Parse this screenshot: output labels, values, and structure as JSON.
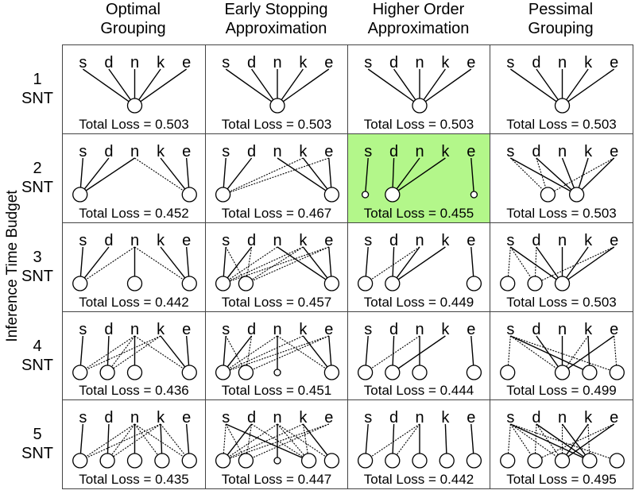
{
  "columns": [
    {
      "line1": "Optimal",
      "line2": "Grouping"
    },
    {
      "line1": "Early Stopping",
      "line2": "Approximation"
    },
    {
      "line1": "Higher Order",
      "line2": "Approximation"
    },
    {
      "line1": "Pessimal",
      "line2": "Grouping"
    }
  ],
  "rows": [
    {
      "num": "1",
      "unit": "SNT"
    },
    {
      "num": "2",
      "unit": "SNT"
    },
    {
      "num": "3",
      "unit": "SNT"
    },
    {
      "num": "4",
      "unit": "SNT"
    },
    {
      "num": "5",
      "unit": "SNT"
    }
  ],
  "y_axis_label": "Inference Time Budget",
  "task_labels": [
    "s",
    "d",
    "n",
    "k",
    "e"
  ],
  "highlight_color": "#b3f78a",
  "highlighted_cell": {
    "row": 1,
    "col": 2
  },
  "loss_prefix": "Total Loss = ",
  "losses": [
    [
      "0.503",
      "0.503",
      "0.503",
      "0.503"
    ],
    [
      "0.452",
      "0.467",
      "0.455",
      "0.503"
    ],
    [
      "0.442",
      "0.457",
      "0.449",
      "0.503"
    ],
    [
      "0.436",
      "0.451",
      "0.444",
      "0.499"
    ],
    [
      "0.435",
      "0.447",
      "0.442",
      "0.495"
    ]
  ],
  "cells": [
    [
      {
        "nodes": [
          {
            "x": 0.5,
            "r": 9
          }
        ],
        "edges": [
          [
            0,
            0,
            1
          ],
          [
            1,
            0,
            1
          ],
          [
            2,
            0,
            1
          ],
          [
            3,
            0,
            1
          ],
          [
            4,
            0,
            1
          ]
        ]
      },
      {
        "nodes": [
          {
            "x": 0.5,
            "r": 9
          }
        ],
        "edges": [
          [
            0,
            0,
            1
          ],
          [
            1,
            0,
            1
          ],
          [
            2,
            0,
            1
          ],
          [
            3,
            0,
            1
          ],
          [
            4,
            0,
            1
          ]
        ]
      },
      {
        "nodes": [
          {
            "x": 0.5,
            "r": 9
          }
        ],
        "edges": [
          [
            0,
            0,
            1
          ],
          [
            1,
            0,
            1
          ],
          [
            2,
            0,
            1
          ],
          [
            3,
            0,
            1
          ],
          [
            4,
            0,
            1
          ]
        ]
      },
      {
        "nodes": [
          {
            "x": 0.5,
            "r": 9
          }
        ],
        "edges": [
          [
            0,
            0,
            1
          ],
          [
            1,
            0,
            1
          ],
          [
            2,
            0,
            1
          ],
          [
            3,
            0,
            1
          ],
          [
            4,
            0,
            1
          ]
        ]
      }
    ],
    [
      {
        "nodes": [
          {
            "x": 0.12,
            "r": 9
          },
          {
            "x": 0.88,
            "r": 9
          }
        ],
        "edges": [
          [
            0,
            0,
            1
          ],
          [
            1,
            0,
            1
          ],
          [
            2,
            0,
            1
          ],
          [
            2,
            1,
            0
          ],
          [
            3,
            1,
            1
          ],
          [
            4,
            1,
            1
          ]
        ]
      },
      {
        "nodes": [
          {
            "x": 0.12,
            "r": 9
          },
          {
            "x": 0.88,
            "r": 9
          }
        ],
        "edges": [
          [
            0,
            0,
            1
          ],
          [
            1,
            0,
            1
          ],
          [
            3,
            0,
            0
          ],
          [
            4,
            0,
            0
          ],
          [
            2,
            1,
            1
          ],
          [
            3,
            1,
            1
          ],
          [
            4,
            1,
            1
          ]
        ]
      },
      {
        "nodes": [
          {
            "x": 0.12,
            "r": 4
          },
          {
            "x": 0.31,
            "r": 9
          },
          {
            "x": 0.88,
            "r": 4
          }
        ],
        "edges": [
          [
            0,
            0,
            1
          ],
          [
            1,
            1,
            1
          ],
          [
            2,
            1,
            1
          ],
          [
            3,
            1,
            1
          ],
          [
            4,
            2,
            1
          ]
        ]
      },
      {
        "nodes": [
          {
            "x": 0.4,
            "r": 9
          },
          {
            "x": 0.6,
            "r": 9
          }
        ],
        "edges": [
          [
            0,
            0,
            0
          ],
          [
            1,
            0,
            0
          ],
          [
            4,
            0,
            0
          ],
          [
            0,
            1,
            1
          ],
          [
            1,
            1,
            1
          ],
          [
            2,
            1,
            1
          ],
          [
            3,
            1,
            1
          ],
          [
            4,
            1,
            1
          ]
        ]
      }
    ],
    [
      {
        "nodes": [
          {
            "x": 0.12,
            "r": 9
          },
          {
            "x": 0.5,
            "r": 9
          },
          {
            "x": 0.88,
            "r": 9
          }
        ],
        "edges": [
          [
            0,
            0,
            1
          ],
          [
            1,
            0,
            1
          ],
          [
            2,
            0,
            0
          ],
          [
            2,
            1,
            1
          ],
          [
            2,
            2,
            0
          ],
          [
            3,
            2,
            1
          ],
          [
            4,
            2,
            1
          ]
        ]
      },
      {
        "nodes": [
          {
            "x": 0.12,
            "r": 9
          },
          {
            "x": 0.28,
            "r": 9
          },
          {
            "x": 0.88,
            "r": 9
          }
        ],
        "edges": [
          [
            0,
            0,
            1
          ],
          [
            1,
            0,
            1
          ],
          [
            1,
            0,
            0
          ],
          [
            2,
            0,
            0
          ],
          [
            3,
            0,
            0
          ],
          [
            4,
            0,
            0
          ],
          [
            0,
            1,
            0
          ],
          [
            1,
            1,
            0
          ],
          [
            3,
            1,
            0
          ],
          [
            4,
            1,
            0
          ],
          [
            2,
            2,
            1
          ],
          [
            3,
            2,
            1
          ],
          [
            4,
            2,
            1
          ]
        ]
      },
      {
        "nodes": [
          {
            "x": 0.12,
            "r": 9
          },
          {
            "x": 0.31,
            "r": 9
          },
          {
            "x": 0.88,
            "r": 9
          }
        ],
        "edges": [
          [
            0,
            0,
            1
          ],
          [
            2,
            0,
            0
          ],
          [
            1,
            1,
            1
          ],
          [
            2,
            1,
            1
          ],
          [
            3,
            1,
            1
          ],
          [
            4,
            2,
            1
          ]
        ]
      },
      {
        "nodes": [
          {
            "x": 0.12,
            "r": 9
          },
          {
            "x": 0.31,
            "r": 9
          },
          {
            "x": 0.5,
            "r": 9
          }
        ],
        "edges": [
          [
            0,
            0,
            0
          ],
          [
            0,
            1,
            0
          ],
          [
            1,
            1,
            0
          ],
          [
            4,
            1,
            0
          ],
          [
            0,
            2,
            1
          ],
          [
            1,
            2,
            1
          ],
          [
            2,
            2,
            1
          ],
          [
            3,
            2,
            1
          ],
          [
            4,
            2,
            1
          ]
        ]
      }
    ],
    [
      {
        "nodes": [
          {
            "x": 0.12,
            "r": 9
          },
          {
            "x": 0.31,
            "r": 9
          },
          {
            "x": 0.5,
            "r": 9
          },
          {
            "x": 0.88,
            "r": 9
          }
        ],
        "edges": [
          [
            0,
            0,
            1
          ],
          [
            2,
            0,
            0
          ],
          [
            3,
            0,
            0
          ],
          [
            1,
            1,
            1
          ],
          [
            2,
            1,
            0
          ],
          [
            3,
            1,
            0
          ],
          [
            2,
            2,
            1
          ],
          [
            2,
            3,
            0
          ],
          [
            3,
            3,
            1
          ],
          [
            4,
            3,
            1
          ]
        ]
      },
      {
        "nodes": [
          {
            "x": 0.12,
            "r": 9
          },
          {
            "x": 0.28,
            "r": 9
          },
          {
            "x": 0.5,
            "r": 4
          },
          {
            "x": 0.88,
            "r": 9
          }
        ],
        "edges": [
          [
            0,
            0,
            1
          ],
          [
            1,
            0,
            1
          ],
          [
            1,
            0,
            0
          ],
          [
            2,
            0,
            0
          ],
          [
            3,
            0,
            0
          ],
          [
            4,
            0,
            0
          ],
          [
            0,
            1,
            0
          ],
          [
            1,
            1,
            0
          ],
          [
            4,
            1,
            0
          ],
          [
            2,
            2,
            1
          ],
          [
            2,
            3,
            0
          ],
          [
            3,
            3,
            1
          ],
          [
            4,
            3,
            1
          ]
        ]
      },
      {
        "nodes": [
          {
            "x": 0.12,
            "r": 9
          },
          {
            "x": 0.31,
            "r": 9
          },
          {
            "x": 0.5,
            "r": 9
          },
          {
            "x": 0.88,
            "r": 9
          }
        ],
        "edges": [
          [
            0,
            0,
            1
          ],
          [
            2,
            0,
            0
          ],
          [
            1,
            1,
            1
          ],
          [
            3,
            1,
            1
          ],
          [
            2,
            2,
            1
          ],
          [
            4,
            3,
            1
          ]
        ]
      },
      {
        "nodes": [
          {
            "x": 0.12,
            "r": 9
          },
          {
            "x": 0.5,
            "r": 9
          },
          {
            "x": 0.69,
            "r": 9
          },
          {
            "x": 0.88,
            "r": 9
          }
        ],
        "edges": [
          [
            0,
            0,
            0
          ],
          [
            0,
            1,
            0
          ],
          [
            1,
            1,
            1
          ],
          [
            2,
            1,
            1
          ],
          [
            3,
            1,
            0
          ],
          [
            4,
            1,
            1
          ],
          [
            0,
            2,
            1
          ],
          [
            3,
            2,
            1
          ],
          [
            0,
            3,
            0
          ],
          [
            4,
            3,
            0
          ]
        ]
      }
    ],
    [
      {
        "nodes": [
          {
            "x": 0.12,
            "r": 9
          },
          {
            "x": 0.31,
            "r": 9
          },
          {
            "x": 0.5,
            "r": 9
          },
          {
            "x": 0.69,
            "r": 9
          },
          {
            "x": 0.88,
            "r": 9
          }
        ],
        "edges": [
          [
            0,
            0,
            1
          ],
          [
            2,
            0,
            0
          ],
          [
            3,
            0,
            0
          ],
          [
            1,
            1,
            1
          ],
          [
            2,
            1,
            0
          ],
          [
            3,
            1,
            0
          ],
          [
            2,
            2,
            1
          ],
          [
            3,
            3,
            1
          ],
          [
            2,
            3,
            0
          ],
          [
            2,
            4,
            0
          ],
          [
            3,
            4,
            0
          ],
          [
            4,
            4,
            1
          ]
        ]
      },
      {
        "nodes": [
          {
            "x": 0.12,
            "r": 9
          },
          {
            "x": 0.28,
            "r": 9
          },
          {
            "x": 0.5,
            "r": 4
          },
          {
            "x": 0.72,
            "r": 9
          },
          {
            "x": 0.88,
            "r": 9
          }
        ],
        "edges": [
          [
            0,
            0,
            0
          ],
          [
            1,
            0,
            1
          ],
          [
            2,
            0,
            0
          ],
          [
            3,
            0,
            0
          ],
          [
            4,
            0,
            0
          ],
          [
            0,
            1,
            0
          ],
          [
            1,
            1,
            0
          ],
          [
            4,
            1,
            0
          ],
          [
            2,
            2,
            1
          ],
          [
            0,
            3,
            1
          ],
          [
            2,
            3,
            0
          ],
          [
            3,
            3,
            0
          ],
          [
            1,
            3,
            0
          ],
          [
            3,
            4,
            1
          ],
          [
            2,
            4,
            0
          ]
        ]
      },
      {
        "nodes": [
          {
            "x": 0.12,
            "r": 9
          },
          {
            "x": 0.31,
            "r": 9
          },
          {
            "x": 0.5,
            "r": 9
          },
          {
            "x": 0.69,
            "r": 9
          },
          {
            "x": 0.88,
            "r": 9
          }
        ],
        "edges": [
          [
            0,
            0,
            1
          ],
          [
            2,
            0,
            0
          ],
          [
            1,
            1,
            1
          ],
          [
            2,
            1,
            0
          ],
          [
            2,
            2,
            1
          ],
          [
            3,
            3,
            1
          ],
          [
            4,
            4,
            1
          ]
        ]
      },
      {
        "nodes": [
          {
            "x": 0.12,
            "r": 9
          },
          {
            "x": 0.31,
            "r": 9
          },
          {
            "x": 0.5,
            "r": 9
          },
          {
            "x": 0.69,
            "r": 9
          },
          {
            "x": 0.88,
            "r": 9
          }
        ],
        "edges": [
          [
            0,
            0,
            0
          ],
          [
            0,
            1,
            0
          ],
          [
            1,
            1,
            0
          ],
          [
            0,
            2,
            0
          ],
          [
            1,
            2,
            0
          ],
          [
            3,
            2,
            1
          ],
          [
            4,
            2,
            1
          ],
          [
            0,
            3,
            1
          ],
          [
            1,
            3,
            1
          ],
          [
            2,
            3,
            1
          ],
          [
            0,
            4,
            0
          ],
          [
            3,
            3,
            0
          ],
          [
            4,
            1,
            0
          ],
          [
            2,
            2,
            0
          ]
        ]
      }
    ]
  ]
}
